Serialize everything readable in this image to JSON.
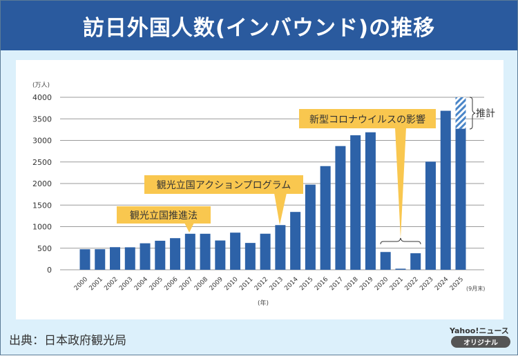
{
  "title": "訪日外国人数(インバウンド)の推移",
  "source": "出典：日本政府観光局",
  "brand": {
    "name": "Yahoo!ニュース",
    "badge": "オリジナル"
  },
  "colors": {
    "title_bg": "#2a5a9e",
    "bar": "#2d62a8",
    "callout": "#f9c74f",
    "background": "#dcf0fb"
  },
  "chart_data": {
    "type": "bar",
    "ylabel": "(万人)",
    "xlabel": "(年)",
    "ylim": [
      0,
      4000
    ],
    "yticks": [
      0,
      500,
      1000,
      1500,
      2000,
      2500,
      3000,
      3500,
      4000
    ],
    "grid": true,
    "categories": [
      "2000",
      "2001",
      "2002",
      "2003",
      "2004",
      "2005",
      "2006",
      "2007",
      "2008",
      "2009",
      "2010",
      "2011",
      "2012",
      "2013",
      "2014",
      "2015",
      "2016",
      "2017",
      "2018",
      "2019",
      "2020",
      "2021",
      "2022",
      "2023",
      "2024",
      "2025"
    ],
    "values": [
      476,
      477,
      524,
      521,
      614,
      673,
      733,
      835,
      835,
      679,
      861,
      622,
      836,
      1036,
      1341,
      1974,
      2404,
      2869,
      3119,
      3188,
      412,
      25,
      383,
      2507,
      3687,
      3270
    ],
    "estimate": {
      "category": "2025",
      "value": 4000,
      "label": "推計"
    },
    "last_category_note": "(9月末)",
    "annotations": [
      {
        "text": "観光立国推進法",
        "category": "2007"
      },
      {
        "text": "観光立国アクションプログラム",
        "category": "2013"
      },
      {
        "text": "新型コロナウイルスの影響",
        "categories": [
          "2020",
          "2021",
          "2022"
        ]
      }
    ]
  }
}
